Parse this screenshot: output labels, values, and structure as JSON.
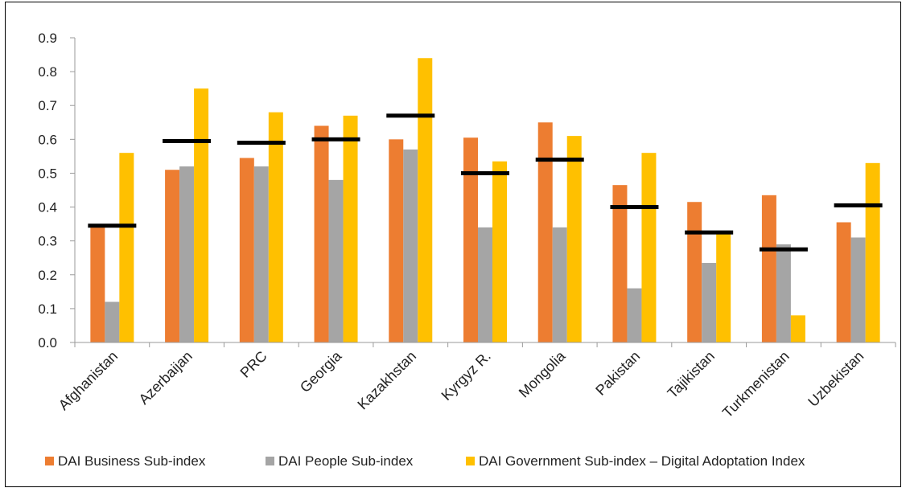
{
  "chart_data": {
    "type": "bar",
    "title": "",
    "xlabel": "",
    "ylabel": "",
    "ylim": [
      0,
      0.9
    ],
    "yticks": [
      "0.0",
      "0.1",
      "0.2",
      "0.3",
      "0.4",
      "0.5",
      "0.6",
      "0.7",
      "0.8",
      "0.9"
    ],
    "categories": [
      "Afghanistan",
      "Azerbaijan",
      "PRC",
      "Georgia",
      "Kazakhstan",
      "Kyrgyz R.",
      "Mongolia",
      "Pakistan",
      "Tajikistan",
      "Turkmenistan",
      "Uzbekistan"
    ],
    "series": [
      {
        "name": "DAI Business Sub-index",
        "color": "#ED7D31",
        "values": [
          0.34,
          0.51,
          0.545,
          0.64,
          0.6,
          0.605,
          0.65,
          0.465,
          0.415,
          0.435,
          0.355
        ]
      },
      {
        "name": "DAI People Sub-index",
        "color": "#A5A5A5",
        "values": [
          0.12,
          0.52,
          0.52,
          0.48,
          0.57,
          0.34,
          0.34,
          0.16,
          0.235,
          0.29,
          0.31
        ]
      },
      {
        "name": "DAI Government Sub-index",
        "color": "#FFC000",
        "values": [
          0.56,
          0.75,
          0.68,
          0.67,
          0.84,
          0.535,
          0.61,
          0.56,
          0.32,
          0.08,
          0.53
        ]
      }
    ],
    "index_marker": {
      "name": "Digital Adoptation Index",
      "color": "#000000",
      "values": [
        0.345,
        0.595,
        0.59,
        0.6,
        0.67,
        0.5,
        0.54,
        0.4,
        0.325,
        0.275,
        0.405
      ]
    },
    "legend": {
      "position": "bottom",
      "entries": [
        "DAI Business Sub-index",
        "DAI People Sub-index",
        "DAI Government Sub-index – Digital Adoptation Index"
      ]
    },
    "grid": false
  }
}
